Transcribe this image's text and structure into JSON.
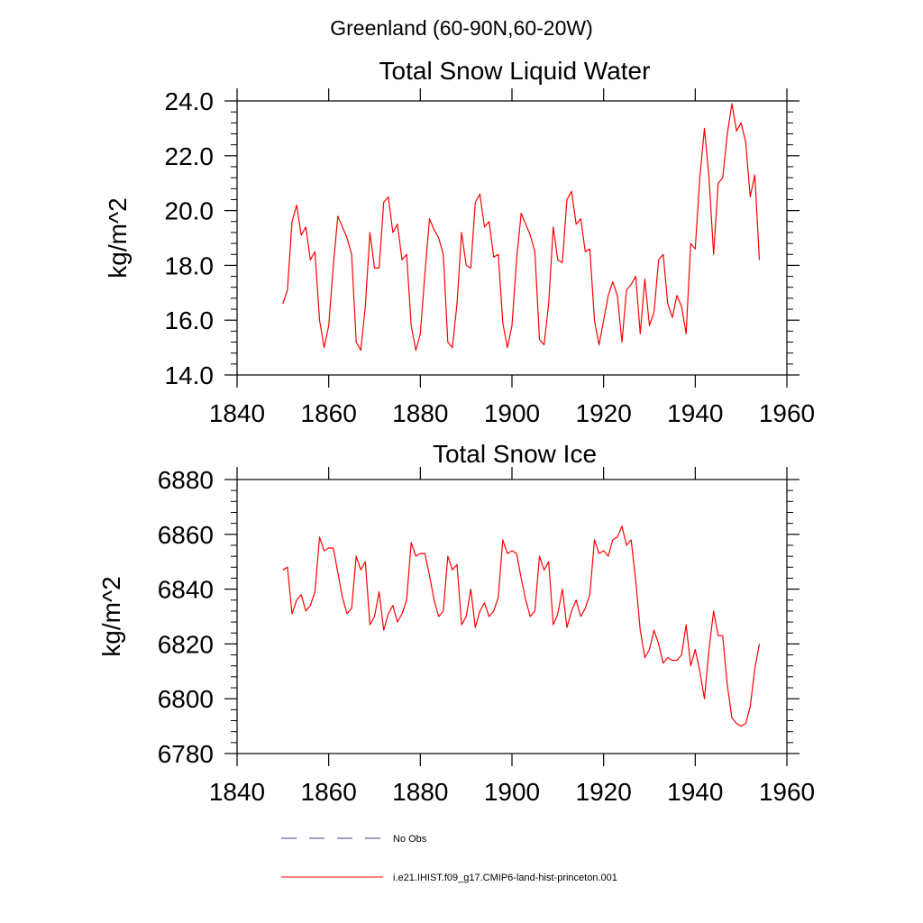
{
  "figure": {
    "title": "Greenland (60-90N,60-20W)"
  },
  "chart_data": [
    {
      "type": "line",
      "title": "Total Snow Liquid Water",
      "ylabel": "kg/m^2",
      "xlabel": "",
      "xlim": [
        1840,
        1960
      ],
      "ylim": [
        14,
        24
      ],
      "xticks": [
        "1840",
        "1860",
        "1880",
        "1900",
        "1920",
        "1940",
        "1960"
      ],
      "yticks": [
        "14.0",
        "16.0",
        "18.0",
        "20.0",
        "22.0",
        "24.0"
      ],
      "grid": false,
      "series": [
        {
          "name": "i.e21.IHIST.f09_g17.CMIP6-land-hist-princeton.001",
          "color": "#ff0000",
          "x": [
            1850,
            1851,
            1852,
            1853,
            1854,
            1855,
            1856,
            1857,
            1858,
            1859,
            1860,
            1861,
            1862,
            1863,
            1864,
            1865,
            1866,
            1867,
            1868,
            1869,
            1870,
            1871,
            1872,
            1873,
            1874,
            1875,
            1876,
            1877,
            1878,
            1879,
            1880,
            1881,
            1882,
            1883,
            1884,
            1885,
            1886,
            1887,
            1888,
            1889,
            1890,
            1891,
            1892,
            1893,
            1894,
            1895,
            1896,
            1897,
            1898,
            1899,
            1900,
            1901,
            1902,
            1903,
            1904,
            1905,
            1906,
            1907,
            1908,
            1909,
            1910,
            1911,
            1912,
            1913,
            1914,
            1915,
            1916,
            1917,
            1918,
            1919,
            1920,
            1921,
            1922,
            1923,
            1924,
            1925,
            1926,
            1927,
            1928,
            1929,
            1930,
            1931,
            1932,
            1933,
            1934,
            1935,
            1936,
            1937,
            1938,
            1939,
            1940,
            1941,
            1942,
            1943,
            1944,
            1945,
            1946,
            1947,
            1948,
            1949,
            1950,
            1951,
            1952,
            1953,
            1954
          ],
          "y": [
            16.6,
            17.1,
            19.6,
            20.2,
            19.1,
            19.4,
            18.2,
            18.5,
            16.0,
            15.0,
            15.8,
            18.0,
            19.8,
            19.4,
            19.0,
            18.4,
            15.2,
            14.9,
            16.5,
            19.2,
            17.9,
            17.9,
            20.3,
            20.5,
            19.2,
            19.5,
            18.2,
            18.4,
            15.8,
            14.9,
            15.5,
            17.7,
            19.7,
            19.3,
            19.0,
            18.4,
            15.2,
            15.0,
            16.6,
            19.2,
            18.0,
            17.9,
            20.3,
            20.6,
            19.4,
            19.6,
            18.3,
            18.4,
            15.9,
            15.0,
            15.8,
            18.2,
            19.9,
            19.5,
            19.1,
            18.5,
            15.3,
            15.1,
            16.6,
            19.4,
            18.2,
            18.1,
            20.4,
            20.7,
            19.5,
            19.7,
            18.5,
            18.6,
            16.0,
            15.1,
            16.0,
            16.9,
            17.4,
            16.9,
            15.2,
            17.1,
            17.3,
            17.6,
            15.5,
            17.5,
            15.8,
            16.3,
            18.2,
            18.4,
            16.6,
            16.1,
            16.9,
            16.5,
            15.5,
            18.8,
            18.6,
            21.2,
            23.0,
            21.2,
            18.4,
            21.0,
            21.2,
            22.8,
            23.9,
            22.9,
            23.2,
            22.5,
            20.5,
            21.3,
            18.2
          ]
        }
      ]
    },
    {
      "type": "line",
      "title": "Total Snow Ice",
      "ylabel": "kg/m^2",
      "xlabel": "",
      "xlim": [
        1840,
        1960
      ],
      "ylim": [
        6780,
        6880
      ],
      "xticks": [
        "1840",
        "1860",
        "1880",
        "1900",
        "1920",
        "1940",
        "1960"
      ],
      "yticks": [
        "6780",
        "6800",
        "6820",
        "6840",
        "6860",
        "6880"
      ],
      "grid": false,
      "series": [
        {
          "name": "i.e21.IHIST.f09_g17.CMIP6-land-hist-princeton.001",
          "color": "#ff0000",
          "x": [
            1850,
            1851,
            1852,
            1853,
            1854,
            1855,
            1856,
            1857,
            1858,
            1859,
            1860,
            1861,
            1862,
            1863,
            1864,
            1865,
            1866,
            1867,
            1868,
            1869,
            1870,
            1871,
            1872,
            1873,
            1874,
            1875,
            1876,
            1877,
            1878,
            1879,
            1880,
            1881,
            1882,
            1883,
            1884,
            1885,
            1886,
            1887,
            1888,
            1889,
            1890,
            1891,
            1892,
            1893,
            1894,
            1895,
            1896,
            1897,
            1898,
            1899,
            1900,
            1901,
            1902,
            1903,
            1904,
            1905,
            1906,
            1907,
            1908,
            1909,
            1910,
            1911,
            1912,
            1913,
            1914,
            1915,
            1916,
            1917,
            1918,
            1919,
            1920,
            1921,
            1922,
            1923,
            1924,
            1925,
            1926,
            1927,
            1928,
            1929,
            1930,
            1931,
            1932,
            1933,
            1934,
            1935,
            1936,
            1937,
            1938,
            1939,
            1940,
            1941,
            1942,
            1943,
            1944,
            1945,
            1946,
            1947,
            1948,
            1949,
            1950,
            1951,
            1952,
            1953,
            1954
          ],
          "y": [
            6847,
            6848,
            6831,
            6836,
            6838,
            6832,
            6834,
            6839,
            6859,
            6854,
            6855,
            6855,
            6846,
            6837,
            6831,
            6833,
            6852,
            6847,
            6850,
            6827,
            6830,
            6839,
            6825,
            6831,
            6834,
            6828,
            6831,
            6836,
            6857,
            6852,
            6853,
            6853,
            6845,
            6836,
            6830,
            6832,
            6852,
            6847,
            6849,
            6827,
            6830,
            6840,
            6826,
            6832,
            6835,
            6830,
            6832,
            6837,
            6858,
            6853,
            6854,
            6853,
            6844,
            6836,
            6830,
            6832,
            6852,
            6847,
            6850,
            6827,
            6831,
            6840,
            6826,
            6832,
            6836,
            6830,
            6833,
            6838,
            6858,
            6853,
            6854,
            6852,
            6858,
            6859,
            6863,
            6856,
            6858,
            6843,
            6825,
            6815,
            6818,
            6825,
            6820,
            6813,
            6815,
            6814,
            6814,
            6816,
            6827,
            6812,
            6818,
            6810,
            6800,
            6818,
            6832,
            6823,
            6823,
            6805,
            6793,
            6791,
            6790,
            6791,
            6797,
            6811,
            6820
          ]
        }
      ]
    }
  ],
  "legend": [
    {
      "label": "No Obs",
      "style": "dashed",
      "color": "#3b3b8f"
    },
    {
      "label": "i.e21.IHIST.f09_g17.CMIP6-land-hist-princeton.001",
      "style": "solid",
      "color": "#ff0000"
    }
  ]
}
